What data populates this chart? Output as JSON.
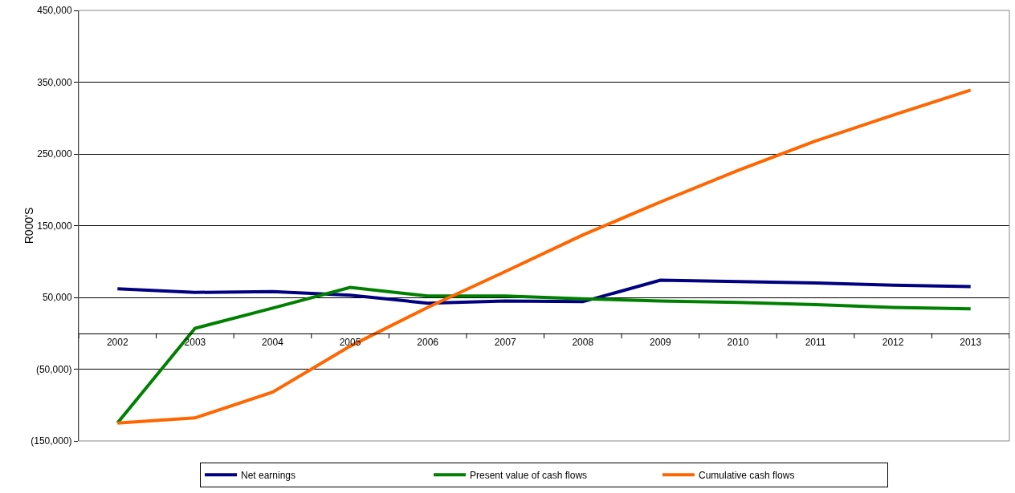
{
  "chart_data": {
    "type": "line",
    "ylabel": "R000'S",
    "categories": [
      "2002",
      "2003",
      "2004",
      "2005",
      "2006",
      "2007",
      "2008",
      "2009",
      "2010",
      "2011",
      "2012",
      "2013"
    ],
    "series": [
      {
        "name": "Net earnings",
        "color": "#000080",
        "values": [
          62000,
          57000,
          58000,
          53000,
          42000,
          45000,
          44000,
          74000,
          72000,
          70000,
          67000,
          65000
        ]
      },
      {
        "name": "Present value of cash flows",
        "color": "#008000",
        "values": [
          -125000,
          7000,
          35000,
          64000,
          52000,
          52000,
          48000,
          45000,
          43000,
          40000,
          36000,
          34000
        ]
      },
      {
        "name": "Cumulative cash flows",
        "color": "#ff6600",
        "values": [
          -125000,
          -118000,
          -82000,
          -18000,
          36000,
          86000,
          137000,
          183000,
          227000,
          268000,
          304000,
          339000
        ]
      }
    ],
    "ylim": [
      -150000,
      450000
    ],
    "yticks": [
      {
        "value": -150000,
        "label": "(150,000)"
      },
      {
        "value": -50000,
        "label": "(50,000)"
      },
      {
        "value": 50000,
        "label": "50,000"
      },
      {
        "value": 150000,
        "label": "150,000"
      },
      {
        "value": 250000,
        "label": "250,000"
      },
      {
        "value": 350000,
        "label": "350,000"
      },
      {
        "value": 450000,
        "label": "450,000"
      }
    ],
    "grid": "y",
    "legend": "bottom",
    "marker": "none",
    "line_style": "solid"
  }
}
